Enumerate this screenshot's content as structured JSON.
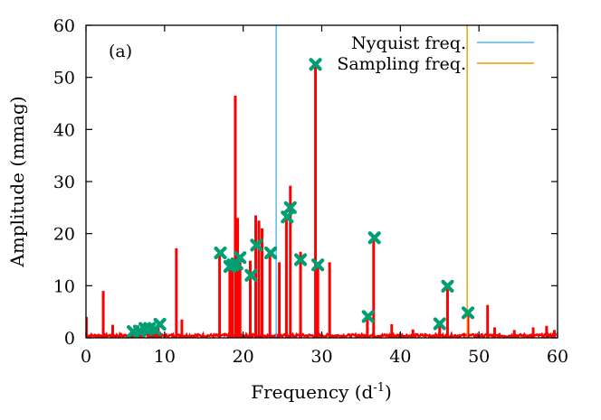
{
  "chart_data": {
    "type": "line",
    "panel_label": "(a)",
    "xlabel_main": "Frequency (d",
    "xlabel_sup": "-1",
    "xlabel_close": ")",
    "ylabel": "Amplitude (mmag)",
    "xlim": [
      0,
      60
    ],
    "ylim": [
      0,
      60
    ],
    "x_ticks": [
      "0",
      "10",
      "20",
      "30",
      "40",
      "50",
      "60"
    ],
    "y_ticks": [
      "0",
      "10",
      "20",
      "30",
      "40",
      "50",
      "60"
    ],
    "grid": false,
    "legend_position": "top-right",
    "colors": {
      "spectrum": "#ff0000",
      "nyquist": "#56b4e9",
      "sampling": "#e69f00",
      "marker": "#009e73"
    },
    "legend": [
      {
        "label": "Nyquist freq.",
        "color": "#56b4e9"
      },
      {
        "label": "Sampling freq.",
        "color": "#e69f00"
      }
    ],
    "nyquist_frequency": 24.2,
    "sampling_frequency": 48.5,
    "spectrum_peaks": [
      {
        "x": 0.05,
        "y": 4.0
      },
      {
        "x": 2.2,
        "y": 9.0
      },
      {
        "x": 3.4,
        "y": 2.5
      },
      {
        "x": 5.9,
        "y": 1.4
      },
      {
        "x": 6.6,
        "y": 1.3
      },
      {
        "x": 7.2,
        "y": 1.6
      },
      {
        "x": 7.9,
        "y": 1.7
      },
      {
        "x": 8.5,
        "y": 1.7
      },
      {
        "x": 9.2,
        "y": 2.6
      },
      {
        "x": 11.5,
        "y": 17.2
      },
      {
        "x": 12.2,
        "y": 3.5
      },
      {
        "x": 17.0,
        "y": 16.4
      },
      {
        "x": 18.3,
        "y": 13.6
      },
      {
        "x": 18.6,
        "y": 14.2
      },
      {
        "x": 19.0,
        "y": 46.5
      },
      {
        "x": 19.3,
        "y": 23.0
      },
      {
        "x": 19.6,
        "y": 15.0
      },
      {
        "x": 20.9,
        "y": 14.8
      },
      {
        "x": 21.6,
        "y": 23.5
      },
      {
        "x": 22.0,
        "y": 22.5
      },
      {
        "x": 22.4,
        "y": 21.0
      },
      {
        "x": 23.4,
        "y": 16.5
      },
      {
        "x": 24.6,
        "y": 14.5
      },
      {
        "x": 25.5,
        "y": 23.6
      },
      {
        "x": 26.0,
        "y": 29.2
      },
      {
        "x": 27.3,
        "y": 16.5
      },
      {
        "x": 29.2,
        "y": 52.5
      },
      {
        "x": 29.5,
        "y": 14.5
      },
      {
        "x": 31.0,
        "y": 14.5
      },
      {
        "x": 35.8,
        "y": 4.3
      },
      {
        "x": 36.6,
        "y": 19.3
      },
      {
        "x": 38.9,
        "y": 2.6
      },
      {
        "x": 41.6,
        "y": 1.6
      },
      {
        "x": 45.0,
        "y": 2.8
      },
      {
        "x": 46.0,
        "y": 10.0
      },
      {
        "x": 48.6,
        "y": 4.9
      },
      {
        "x": 51.1,
        "y": 6.3
      },
      {
        "x": 52.0,
        "y": 2.0
      },
      {
        "x": 54.5,
        "y": 1.5
      },
      {
        "x": 56.9,
        "y": 2.0
      },
      {
        "x": 58.6,
        "y": 2.3
      },
      {
        "x": 59.6,
        "y": 1.5
      }
    ],
    "identified_frequencies": [
      {
        "x": 6.0,
        "y": 1.2
      },
      {
        "x": 6.8,
        "y": 1.3
      },
      {
        "x": 7.5,
        "y": 1.8
      },
      {
        "x": 8.1,
        "y": 1.8
      },
      {
        "x": 8.8,
        "y": 1.6
      },
      {
        "x": 9.4,
        "y": 2.6
      },
      {
        "x": 17.1,
        "y": 16.3
      },
      {
        "x": 18.3,
        "y": 13.7
      },
      {
        "x": 18.7,
        "y": 14.0
      },
      {
        "x": 19.2,
        "y": 14.2
      },
      {
        "x": 19.6,
        "y": 15.4
      },
      {
        "x": 21.0,
        "y": 12.0
      },
      {
        "x": 21.7,
        "y": 17.8
      },
      {
        "x": 23.5,
        "y": 16.3
      },
      {
        "x": 25.6,
        "y": 23.2
      },
      {
        "x": 26.0,
        "y": 25.0
      },
      {
        "x": 27.3,
        "y": 15.0
      },
      {
        "x": 29.2,
        "y": 52.5
      },
      {
        "x": 29.5,
        "y": 14.0
      },
      {
        "x": 35.9,
        "y": 4.1
      },
      {
        "x": 36.7,
        "y": 19.2
      },
      {
        "x": 45.0,
        "y": 2.7
      },
      {
        "x": 46.0,
        "y": 9.9
      },
      {
        "x": 48.6,
        "y": 4.8
      }
    ]
  }
}
